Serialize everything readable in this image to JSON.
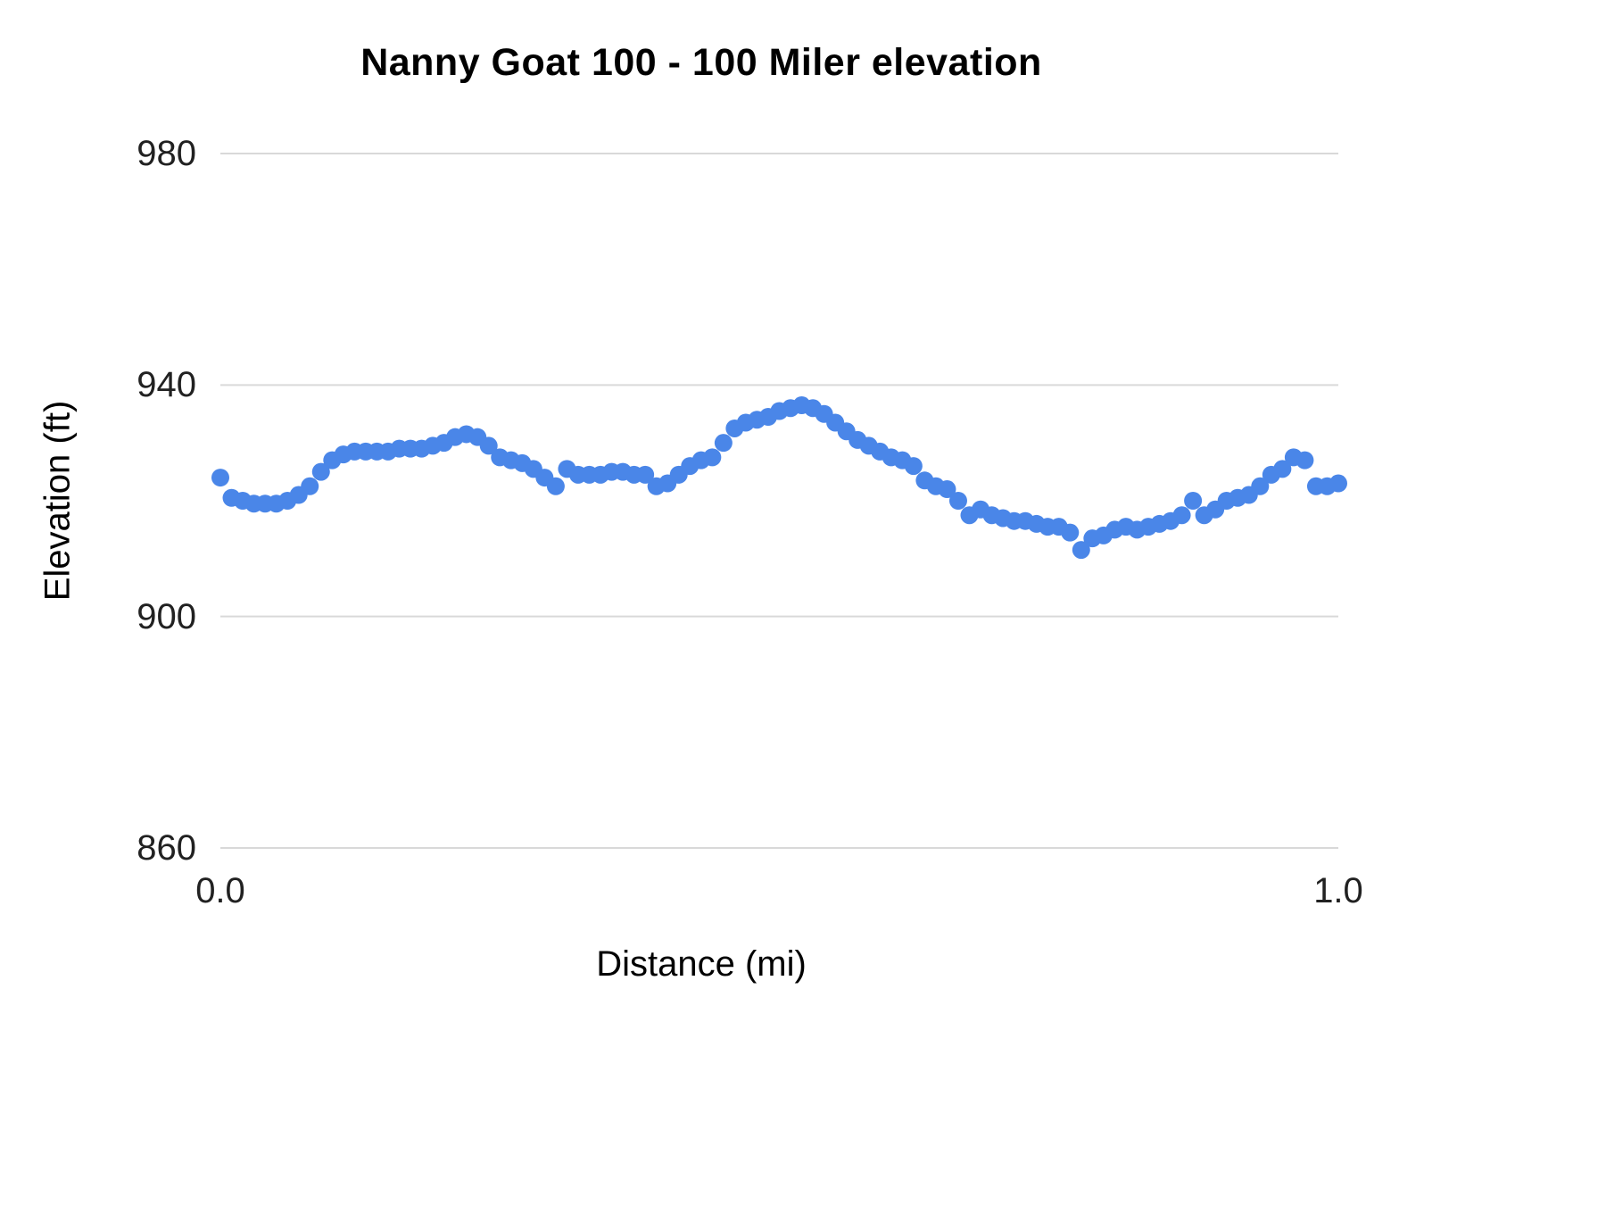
{
  "chart_data": {
    "type": "scatter",
    "title": "Nanny Goat 100 - 100 Miler elevation",
    "xlabel": "Distance (mi)",
    "ylabel": "Elevation (ft)",
    "xlim": [
      0.0,
      1.0
    ],
    "ylim": [
      860,
      980
    ],
    "yticks": [
      860,
      900,
      940,
      980
    ],
    "ytick_labels": [
      "860",
      "900",
      "940",
      "980"
    ],
    "xticks": [
      0.0,
      1.0
    ],
    "xtick_labels": [
      "0.0",
      "1.0"
    ],
    "grid": "horizontal-only",
    "legend": "none",
    "point_color": "#4a86e8",
    "grid_color": "#d9d9d9",
    "point_radius": 10,
    "series": [
      {
        "name": "elevation",
        "x": [
          0.0,
          0.01,
          0.02,
          0.03,
          0.04,
          0.05,
          0.06,
          0.07,
          0.08,
          0.09,
          0.1,
          0.11,
          0.12,
          0.13,
          0.14,
          0.15,
          0.16,
          0.17,
          0.18,
          0.19,
          0.2,
          0.21,
          0.22,
          0.23,
          0.24,
          0.25,
          0.26,
          0.27,
          0.28,
          0.29,
          0.3,
          0.31,
          0.32,
          0.33,
          0.34,
          0.35,
          0.36,
          0.37,
          0.38,
          0.39,
          0.4,
          0.41,
          0.42,
          0.43,
          0.44,
          0.45,
          0.46,
          0.47,
          0.48,
          0.49,
          0.5,
          0.51,
          0.52,
          0.53,
          0.54,
          0.55,
          0.56,
          0.57,
          0.58,
          0.59,
          0.6,
          0.61,
          0.62,
          0.63,
          0.64,
          0.65,
          0.66,
          0.67,
          0.68,
          0.69,
          0.7,
          0.71,
          0.72,
          0.73,
          0.74,
          0.75,
          0.76,
          0.77,
          0.78,
          0.79,
          0.8,
          0.81,
          0.82,
          0.83,
          0.84,
          0.85,
          0.86,
          0.87,
          0.88,
          0.89,
          0.9,
          0.91,
          0.92,
          0.93,
          0.94,
          0.95,
          0.96,
          0.97,
          0.98,
          0.99,
          1.0
        ],
        "y": [
          924,
          920.5,
          920,
          919.5,
          919.5,
          919.5,
          920,
          921,
          922.5,
          925,
          927,
          928,
          928.5,
          928.5,
          928.5,
          928.5,
          929,
          929,
          929,
          929.5,
          930,
          931,
          931.5,
          931,
          929.5,
          927.5,
          927,
          926.5,
          925.5,
          924,
          922.5,
          925.5,
          924.5,
          924.5,
          924.5,
          925,
          925,
          924.5,
          924.5,
          922.5,
          923,
          924.5,
          926,
          927,
          927.5,
          930,
          932.5,
          933.5,
          934,
          934.5,
          935.5,
          936,
          936.5,
          936,
          935,
          933.5,
          932,
          930.5,
          929.5,
          928.5,
          927.5,
          927,
          926,
          923.5,
          922.5,
          922,
          920,
          917.5,
          918.5,
          917.5,
          917,
          916.5,
          916.5,
          916,
          915.5,
          915.5,
          914.5,
          911.5,
          913.5,
          914,
          915,
          915.5,
          915,
          915.5,
          916,
          916.5,
          917.5,
          920,
          917.5,
          918.5,
          920,
          920.5,
          921,
          922.5,
          924.5,
          925.5,
          927.5,
          927,
          922.5,
          922.5,
          923
        ]
      }
    ]
  }
}
